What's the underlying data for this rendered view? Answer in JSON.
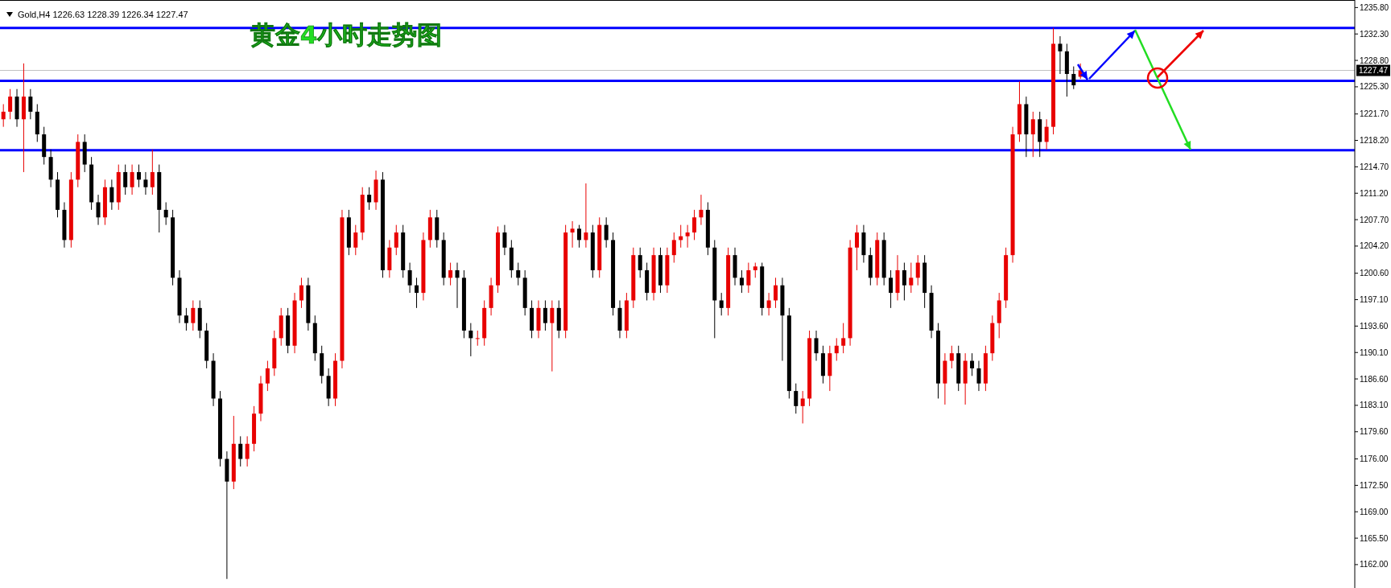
{
  "chart_data": {
    "type": "candlestick",
    "title": "黄金4小时走势图",
    "subtitle": "Gold,H4",
    "categories": [
      null,
      null,
      null,
      null,
      null,
      null,
      null,
      null,
      null,
      null,
      null,
      null,
      null,
      null,
      null,
      null,
      null,
      null,
      null,
      null,
      null,
      null,
      null,
      null,
      null,
      null,
      null,
      null,
      null,
      null,
      null,
      null,
      null,
      null,
      null,
      null,
      null,
      null,
      null,
      null,
      null,
      null,
      null,
      null,
      null,
      null,
      null,
      null,
      null,
      null,
      null,
      null,
      null,
      null,
      null,
      null,
      null,
      null,
      null,
      null,
      null,
      null,
      null,
      null,
      null,
      null,
      null,
      null,
      null,
      null,
      null,
      null,
      null,
      null,
      null,
      null,
      null,
      null,
      null,
      null,
      null,
      null,
      null,
      null,
      null,
      null,
      null,
      null,
      null,
      null,
      null,
      null,
      null,
      null,
      null,
      null,
      null,
      null,
      null,
      null,
      null,
      null,
      null,
      null,
      null,
      null,
      null,
      null,
      null,
      null,
      null,
      null,
      null,
      null,
      null,
      null,
      null,
      null,
      null,
      null,
      null,
      null,
      null,
      null,
      null,
      null,
      null,
      null,
      null,
      null,
      null,
      null,
      null,
      null,
      null,
      null,
      null,
      null,
      null,
      null,
      null,
      null,
      null,
      null,
      null,
      null,
      null,
      null,
      null,
      null,
      null,
      null,
      null,
      null,
      null,
      null,
      null,
      null,
      null,
      null,
      null,
      null,
      null,
      null,
      null,
      null,
      null,
      null,
      null,
      null,
      null,
      null,
      null,
      null,
      null,
      null,
      null,
      null,
      null,
      null,
      null,
      null,
      null,
      null,
      null,
      null,
      null,
      null,
      null,
      null,
      null,
      null,
      null,
      null,
      null,
      null,
      null,
      null,
      null,
      null
    ],
    "ohlc": [
      [
        1221,
        1223,
        1220,
        1222
      ],
      [
        1222,
        1225,
        1221,
        1224
      ],
      [
        1224,
        1225,
        1220,
        1221
      ],
      [
        1221,
        1228.4,
        1214,
        1224
      ],
      [
        1224,
        1225,
        1221,
        1222
      ],
      [
        1222,
        1223,
        1218,
        1219
      ],
      [
        1219,
        1220,
        1215,
        1216
      ],
      [
        1216,
        1217,
        1212,
        1213
      ],
      [
        1213,
        1214,
        1208,
        1209
      ],
      [
        1209,
        1210,
        1204,
        1205
      ],
      [
        1205,
        1214,
        1204,
        1213
      ],
      [
        1213,
        1219,
        1212,
        1218
      ],
      [
        1218,
        1219,
        1214,
        1215
      ],
      [
        1215,
        1216,
        1209,
        1210
      ],
      [
        1210,
        1211,
        1207,
        1208
      ],
      [
        1208,
        1213,
        1207,
        1212
      ],
      [
        1212,
        1213,
        1209,
        1210
      ],
      [
        1210,
        1215,
        1209,
        1214
      ],
      [
        1214,
        1215,
        1211,
        1212
      ],
      [
        1212,
        1215,
        1211,
        1214
      ],
      [
        1214,
        1215,
        1212,
        1213
      ],
      [
        1213,
        1214,
        1211,
        1212
      ],
      [
        1212,
        1217,
        1211,
        1214
      ],
      [
        1214,
        1215,
        1206,
        1209
      ],
      [
        1209,
        1210,
        1207,
        1208
      ],
      [
        1208,
        1209,
        1199,
        1200
      ],
      [
        1200,
        1201,
        1194,
        1195
      ],
      [
        1195,
        1196,
        1193,
        1194
      ],
      [
        1194,
        1197,
        1193,
        1196
      ],
      [
        1196,
        1197,
        1192,
        1193
      ],
      [
        1193,
        1194,
        1188,
        1189
      ],
      [
        1189,
        1190,
        1183,
        1184
      ],
      [
        1184,
        1185,
        1175,
        1176
      ],
      [
        1176,
        1177,
        1160.1,
        1173
      ],
      [
        1173,
        1181.7,
        1172,
        1178
      ],
      [
        1178,
        1179,
        1175,
        1176
      ],
      [
        1176,
        1179,
        1175,
        1178
      ],
      [
        1178,
        1183,
        1177,
        1182
      ],
      [
        1182,
        1187,
        1181,
        1186
      ],
      [
        1186,
        1189,
        1185,
        1188
      ],
      [
        1188,
        1193,
        1187,
        1192
      ],
      [
        1192,
        1196,
        1191,
        1195
      ],
      [
        1195,
        1196,
        1190,
        1191
      ],
      [
        1191,
        1198,
        1190,
        1197
      ],
      [
        1197,
        1200,
        1196,
        1199
      ],
      [
        1199,
        1200,
        1193,
        1194
      ],
      [
        1194,
        1195,
        1189,
        1190
      ],
      [
        1190,
        1191,
        1186,
        1187
      ],
      [
        1187,
        1188,
        1183,
        1184
      ],
      [
        1184,
        1190,
        1183,
        1189
      ],
      [
        1189,
        1209,
        1188,
        1208
      ],
      [
        1208,
        1209,
        1203,
        1204
      ],
      [
        1204,
        1207,
        1203,
        1206
      ],
      [
        1206,
        1212,
        1205,
        1211
      ],
      [
        1211,
        1212,
        1209,
        1210
      ],
      [
        1210,
        1214.2,
        1209,
        1213
      ],
      [
        1213,
        1214,
        1200,
        1201
      ],
      [
        1201,
        1205,
        1200,
        1204
      ],
      [
        1204,
        1207,
        1203,
        1206
      ],
      [
        1206,
        1207,
        1200,
        1201
      ],
      [
        1201,
        1202,
        1198,
        1199
      ],
      [
        1199,
        1200,
        1196,
        1198
      ],
      [
        1198,
        1206,
        1197,
        1205
      ],
      [
        1205,
        1209,
        1204,
        1208
      ],
      [
        1208,
        1209,
        1204,
        1205
      ],
      [
        1205,
        1206,
        1199,
        1200
      ],
      [
        1200,
        1202,
        1199,
        1201
      ],
      [
        1201,
        1202,
        1196,
        1200
      ],
      [
        1200,
        1201,
        1192,
        1193
      ],
      [
        1193,
        1194,
        1189.6,
        1192
      ],
      [
        1192,
        1193,
        1191,
        1192
      ],
      [
        1192,
        1197,
        1191,
        1196
      ],
      [
        1196,
        1200,
        1195,
        1199
      ],
      [
        1199,
        1206.8,
        1198,
        1206
      ],
      [
        1206,
        1207,
        1203,
        1204
      ],
      [
        1204,
        1205,
        1200,
        1201
      ],
      [
        1201,
        1202,
        1199,
        1200
      ],
      [
        1200,
        1201,
        1195,
        1196
      ],
      [
        1196,
        1197,
        1192,
        1193
      ],
      [
        1193,
        1197,
        1192,
        1196
      ],
      [
        1196,
        1197,
        1193,
        1194
      ],
      [
        1194,
        1197,
        1187.6,
        1196
      ],
      [
        1196,
        1197,
        1192,
        1193
      ],
      [
        1193,
        1207,
        1192,
        1206
      ],
      [
        1206,
        1207.5,
        1204,
        1206.5
      ],
      [
        1206.5,
        1207,
        1204,
        1205
      ],
      [
        1205,
        1212.5,
        1204,
        1206
      ],
      [
        1206,
        1207,
        1200,
        1201
      ],
      [
        1201,
        1208,
        1200,
        1207
      ],
      [
        1207,
        1208,
        1204,
        1205
      ],
      [
        1205,
        1206,
        1195,
        1196
      ],
      [
        1196,
        1197,
        1192,
        1193
      ],
      [
        1193,
        1198,
        1192,
        1197
      ],
      [
        1197,
        1204,
        1196,
        1203
      ],
      [
        1203,
        1204,
        1200,
        1201
      ],
      [
        1201,
        1202,
        1197,
        1198
      ],
      [
        1198,
        1204,
        1197,
        1203
      ],
      [
        1203,
        1204,
        1198,
        1199
      ],
      [
        1199,
        1204,
        1198,
        1203
      ],
      [
        1203,
        1206,
        1202,
        1205
      ],
      [
        1205,
        1207,
        1204,
        1205.5
      ],
      [
        1205.5,
        1207,
        1204,
        1206
      ],
      [
        1206,
        1209,
        1205,
        1208
      ],
      [
        1208,
        1211,
        1207,
        1209
      ],
      [
        1209,
        1210,
        1203,
        1204
      ],
      [
        1204,
        1205,
        1192,
        1197
      ],
      [
        1197,
        1198,
        1195,
        1196
      ],
      [
        1196,
        1204,
        1195,
        1203
      ],
      [
        1203,
        1204,
        1199,
        1200
      ],
      [
        1200,
        1201,
        1198,
        1199
      ],
      [
        1199,
        1202,
        1198,
        1201
      ],
      [
        1201,
        1202,
        1200,
        1201.5
      ],
      [
        1201.5,
        1202,
        1195,
        1196
      ],
      [
        1196,
        1198,
        1195,
        1197
      ],
      [
        1197,
        1200,
        1196,
        1199
      ],
      [
        1199,
        1200,
        1189,
        1195
      ],
      [
        1195,
        1196,
        1184,
        1185
      ],
      [
        1185,
        1186,
        1182,
        1183
      ],
      [
        1183,
        1185,
        1180.7,
        1184
      ],
      [
        1184,
        1193,
        1183,
        1192
      ],
      [
        1192,
        1193,
        1189,
        1190
      ],
      [
        1190,
        1191,
        1186,
        1187
      ],
      [
        1187,
        1191,
        1185,
        1190
      ],
      [
        1190,
        1192,
        1189,
        1191
      ],
      [
        1191,
        1194,
        1190,
        1192
      ],
      [
        1192,
        1205,
        1191,
        1204
      ],
      [
        1204,
        1207,
        1201,
        1206
      ],
      [
        1206,
        1207,
        1202,
        1203
      ],
      [
        1203,
        1204,
        1199,
        1200
      ],
      [
        1200,
        1206,
        1199,
        1205
      ],
      [
        1205,
        1206,
        1199,
        1200
      ],
      [
        1200,
        1201,
        1196,
        1198
      ],
      [
        1198,
        1203,
        1197,
        1201
      ],
      [
        1201,
        1202,
        1197,
        1199
      ],
      [
        1199,
        1202,
        1198,
        1200
      ],
      [
        1200,
        1203,
        1199,
        1202
      ],
      [
        1202,
        1203,
        1196,
        1198
      ],
      [
        1198,
        1199,
        1192,
        1193
      ],
      [
        1193,
        1194,
        1184,
        1186
      ],
      [
        1186,
        1190,
        1183.2,
        1189
      ],
      [
        1189,
        1191,
        1188,
        1190
      ],
      [
        1190,
        1191,
        1185,
        1186
      ],
      [
        1186,
        1190,
        1183.2,
        1189
      ],
      [
        1189,
        1190,
        1187,
        1188
      ],
      [
        1188,
        1189,
        1185,
        1186
      ],
      [
        1186,
        1191,
        1185,
        1190
      ],
      [
        1190,
        1195,
        1189,
        1194
      ],
      [
        1194,
        1198,
        1192,
        1197
      ],
      [
        1197,
        1204,
        1196,
        1203
      ],
      [
        1203,
        1220,
        1202,
        1219
      ],
      [
        1219,
        1226,
        1218,
        1223
      ],
      [
        1223,
        1224,
        1216,
        1219
      ],
      [
        1219,
        1222,
        1216,
        1221
      ],
      [
        1221,
        1222,
        1216,
        1218
      ],
      [
        1218,
        1221,
        1217,
        1220
      ],
      [
        1220,
        1233.1,
        1219,
        1231
      ],
      [
        1231,
        1232,
        1227,
        1230
      ],
      [
        1230,
        1231,
        1224,
        1227
      ],
      [
        1227,
        1228,
        1225,
        1225.5
      ],
      [
        1226.63,
        1228.39,
        1226.34,
        1227.47
      ],
      null,
      null,
      null,
      null,
      null,
      null,
      null,
      null,
      null,
      null,
      null,
      null,
      null,
      null,
      null,
      null,
      null,
      null,
      null,
      null,
      null,
      null,
      null,
      null,
      null,
      null,
      null,
      null,
      null,
      null,
      null,
      null,
      null,
      null,
      null,
      null,
      null,
      null,
      null,
      null
    ],
    "ylim": [
      1158.9,
      1236.8
    ],
    "yticks": [
      {
        "value": 1235.8,
        "label": "1235.80"
      },
      {
        "value": 1232.3,
        "label": "1232.30"
      },
      {
        "value": 1228.8,
        "label": "1228.80"
      },
      {
        "value": 1225.3,
        "label": "1225.30"
      },
      {
        "value": 1221.7,
        "label": "1221.70"
      },
      {
        "value": 1218.2,
        "label": "1218.20"
      },
      {
        "value": 1214.7,
        "label": "1214.70"
      },
      {
        "value": 1211.2,
        "label": "1211.20"
      },
      {
        "value": 1207.7,
        "label": "1207.70"
      },
      {
        "value": 1204.2,
        "label": "1204.20"
      },
      {
        "value": 1200.6,
        "label": "1200.60"
      },
      {
        "value": 1197.1,
        "label": "1197.10"
      },
      {
        "value": 1193.6,
        "label": "1193.60"
      },
      {
        "value": 1190.1,
        "label": "1190.10"
      },
      {
        "value": 1186.6,
        "label": "1186.60"
      },
      {
        "value": 1183.1,
        "label": "1183.10"
      },
      {
        "value": 1179.6,
        "label": "1179.60"
      },
      {
        "value": 1176,
        "label": "1176.00"
      },
      {
        "value": 1172.5,
        "label": "1172.50"
      },
      {
        "value": 1169,
        "label": "1169.00"
      },
      {
        "value": 1165.5,
        "label": "1165.50"
      },
      {
        "value": 1162,
        "label": "1162.00"
      }
    ],
    "ref_lines": [
      {
        "axis": "y",
        "value": 1216.9,
        "label": null,
        "color": "#0000ff"
      },
      {
        "axis": "y",
        "value": 1226.1,
        "label": null,
        "color": "#0000ff"
      },
      {
        "axis": "y",
        "value": 1233.1,
        "label": null,
        "color": "#0000ff"
      },
      {
        "axis": "y",
        "value": 1227.47,
        "label": "1227.47",
        "color": "#c0c0c0"
      }
    ],
    "annotations": [
      "1226.63 1228.39 1226.34 1227.47"
    ]
  }
}
